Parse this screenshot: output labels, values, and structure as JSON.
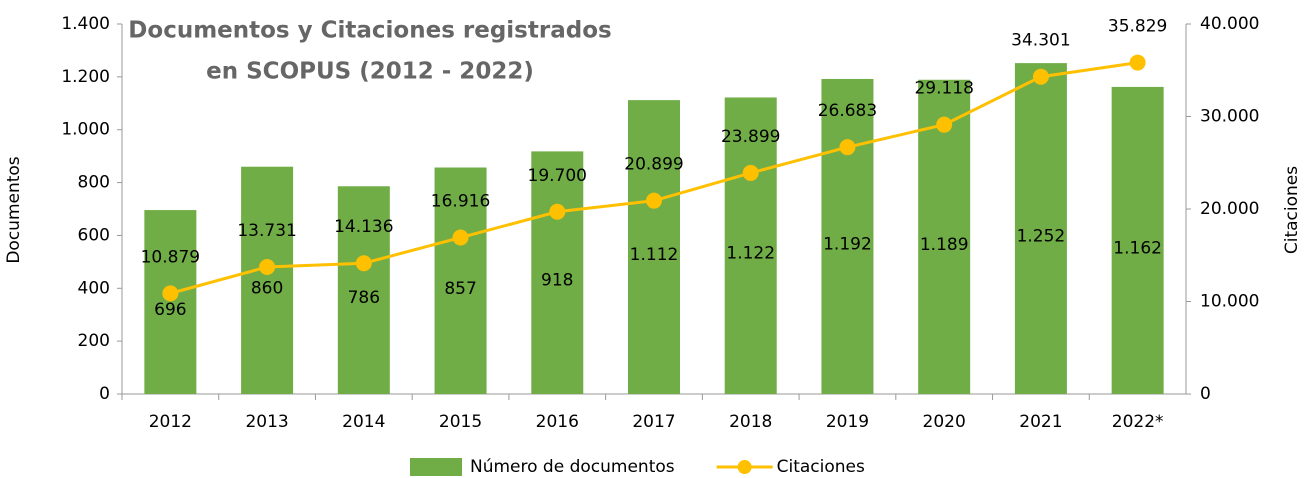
{
  "chart_data": {
    "type": "bar",
    "title": [
      "Documentos y Citaciones registrados",
      "en SCOPUS (2012 - 2022)"
    ],
    "ylabel": "Documentos",
    "y2label": "Citaciones",
    "categories": [
      "2012",
      "2013",
      "2014",
      "2015",
      "2016",
      "2017",
      "2018",
      "2019",
      "2020",
      "2021",
      "2022*"
    ],
    "series": [
      {
        "name": "Número de documentos",
        "type": "bar",
        "color": "#70ad47",
        "values": [
          696,
          860,
          786,
          857,
          918,
          1112,
          1122,
          1192,
          1189,
          1252,
          1162
        ],
        "value_labels": [
          "696",
          "860",
          "786",
          "857",
          "918",
          "1.112",
          "1.122",
          "1.192",
          "1.189",
          "1.252",
          "1.162"
        ]
      },
      {
        "name": "Citaciones",
        "type": "line",
        "axis": "y2",
        "color": "#ffc000",
        "values": [
          10879,
          13731,
          14136,
          16916,
          19700,
          20899,
          23899,
          26683,
          29118,
          34301,
          35829
        ],
        "value_labels": [
          "10.879",
          "13.731",
          "14.136",
          "16.916",
          "19.700",
          "20.899",
          "23.899",
          "26.683",
          "29.118",
          "34.301",
          "35.829"
        ]
      }
    ],
    "ylim": [
      0,
      1400
    ],
    "yticks": [
      0,
      200,
      400,
      600,
      800,
      {
        "value": 1000,
        "label": "1.000"
      },
      {
        "value": 1200,
        "label": "1.200"
      },
      {
        "value": 1400,
        "label": "1.400"
      }
    ],
    "y2lim": [
      0,
      40000
    ],
    "y2ticks": [
      0,
      {
        "value": 10000,
        "label": "10.000"
      },
      {
        "value": 20000,
        "label": "20.000"
      },
      {
        "value": 30000,
        "label": "30.000"
      },
      {
        "value": 40000,
        "label": "40.000"
      }
    ],
    "legend": "bottom"
  }
}
